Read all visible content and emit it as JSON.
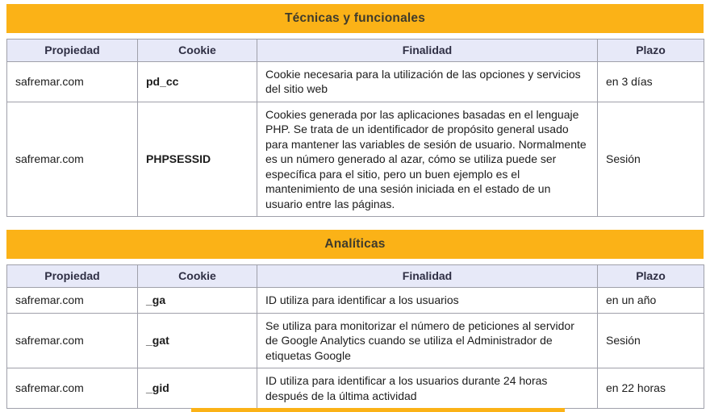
{
  "page": {
    "accent_color": "#FBB217",
    "header_row_bg": "#E7E9F8",
    "grid_border_color": "#9FA0AA",
    "title_text_color": "#3F3B2C"
  },
  "columns": [
    "Propiedad",
    "Cookie",
    "Finalidad",
    "Plazo"
  ],
  "sections": [
    {
      "title": "Técnicas y funcionales",
      "rows": [
        {
          "propiedad": "safremar.com",
          "cookie": "pd_cc",
          "finalidad": "Cookie necesaria para la utilización de las opciones y servicios del sitio web",
          "plazo": "en 3 días"
        },
        {
          "propiedad": "safremar.com",
          "cookie": "PHPSESSID",
          "finalidad": "Cookies generada por las aplicaciones basadas en el lenguaje PHP. Se trata de un identificador de propósito general usado para mantener las variables de sesión de usuario. Normalmente es un número generado al azar, cómo se utiliza puede ser específica para el sitio, pero un buen ejemplo es el mantenimiento de una sesión iniciada en el estado de un usuario entre las páginas.",
          "plazo": "Sesión"
        }
      ]
    },
    {
      "title": "Analíticas",
      "rows": [
        {
          "propiedad": "safremar.com",
          "cookie": "_ga",
          "finalidad": "ID utiliza para identificar a los usuarios",
          "plazo": "en un año"
        },
        {
          "propiedad": "safremar.com",
          "cookie": "_gat",
          "finalidad": "Se utiliza para monitorizar el número de peticiones al servidor de Google Analytics cuando se utiliza el Administrador de etiquetas Google",
          "plazo": "Sesión"
        },
        {
          "propiedad": "safremar.com",
          "cookie": "_gid",
          "finalidad": "ID utiliza para identificar a los usuarios durante 24 horas después de la última actividad",
          "plazo": "en 22 horas"
        }
      ]
    }
  ]
}
